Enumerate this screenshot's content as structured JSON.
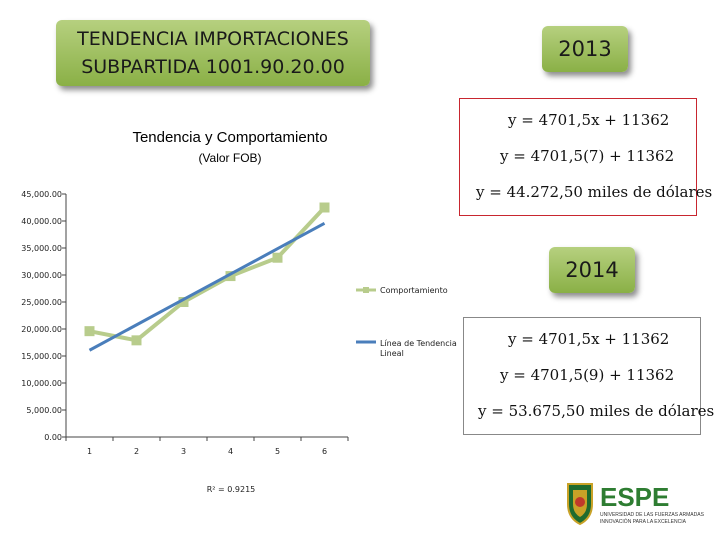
{
  "header": {
    "title_line1": "TENDENCIA IMPORTACIONES",
    "title_line2": "SUBPARTIDA 1001.90.20.00"
  },
  "years": {
    "y2013": "2013",
    "y2014": "2014"
  },
  "equations_2013": {
    "line1": "y = 4701,5x +  11362",
    "line2": "y = 4701,5(7) +  11362",
    "line3": "y = 44.272,50 miles de dólares"
  },
  "equations_2014": {
    "line1": "y = 4701,5x +  11362",
    "line2": "y = 4701,5(9) +  11362",
    "line3": "y = 53.675,50 miles de dólares"
  },
  "chart_data": {
    "type": "line",
    "title": "Tendencia y Comportamiento",
    "subtitle": "(Valor FOB)",
    "x": [
      1,
      2,
      3,
      4,
      5,
      6
    ],
    "series": [
      {
        "name": "Comportamiento",
        "values": [
          19600,
          17900,
          25000,
          29800,
          33200,
          42500
        ],
        "color": "#b8cc8c",
        "marker": "square"
      },
      {
        "name": "Línea de Tendencia Lineal",
        "values": [
          16063.5,
          20765,
          25466.5,
          30168,
          34869.5,
          39571
        ],
        "color": "#4a7ebb"
      }
    ],
    "ylim": [
      0,
      45000
    ],
    "yticks": [
      "0.00",
      "5,000.00",
      "10,000.00",
      "15,000.00",
      "20,000.00",
      "25,000.00",
      "30,000.00",
      "35,000.00",
      "40,000.00",
      "45,000.00"
    ],
    "xticks": [
      "1",
      "2",
      "3",
      "4",
      "5",
      "6"
    ],
    "r2": "R² = 0.9215",
    "legend_position": "right"
  },
  "logo": {
    "brand": "ESPE",
    "subtitle_line1": "UNIVERSIDAD DE LAS FUERZAS ARMADAS",
    "subtitle_line2": "INNOVACIÓN PARA LA EXCELENCIA"
  }
}
